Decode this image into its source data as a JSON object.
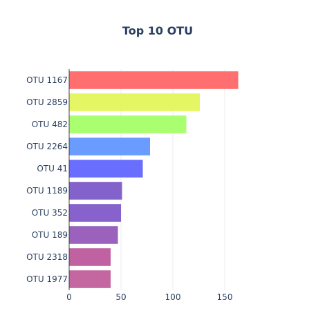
{
  "chart_data": {
    "type": "bar",
    "orientation": "horizontal",
    "title": "Top 10 OTU",
    "xlabel": "",
    "ylabel": "",
    "xlim": [
      0,
      168
    ],
    "grid": true,
    "legend": "none",
    "categories": [
      "OTU 1167",
      "OTU 2859",
      "OTU 482",
      "OTU 2264",
      "OTU 41",
      "OTU 1189",
      "OTU 352",
      "OTU 189",
      "OTU 2318",
      "OTU 1977"
    ],
    "values": [
      163,
      126,
      113,
      78,
      71,
      51,
      50,
      47,
      40,
      40
    ],
    "colors": [
      "#ff6f6f",
      "#e4f664",
      "#aaff70",
      "#6a9cff",
      "#6a6eff",
      "#8462cc",
      "#8762cc",
      "#9a62bd",
      "#c062a1",
      "#c466a0"
    ],
    "x_ticks": [
      "0",
      "50",
      "100",
      "150"
    ],
    "x_tick_values": [
      0,
      50,
      100,
      150
    ]
  }
}
